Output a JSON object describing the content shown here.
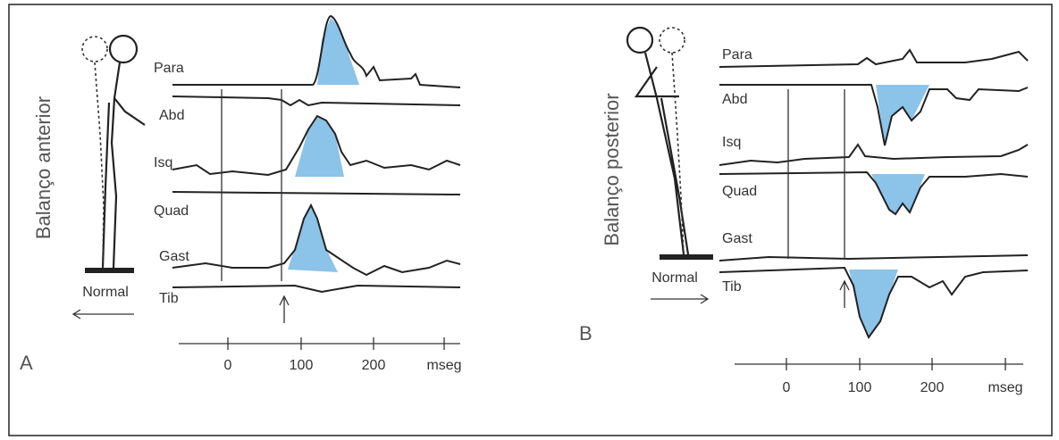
{
  "panel_a": {
    "label": "A",
    "side_label": "Balanço anterior",
    "figure_label": "Normal",
    "muscles": [
      "Para",
      "Abd",
      "Isq",
      "Quad",
      "Gast",
      "Tib"
    ],
    "axis_labels": [
      "0",
      "100",
      "200",
      "mseg"
    ]
  },
  "panel_b": {
    "label": "B",
    "side_label": "Balanço posterior",
    "figure_label": "Normal",
    "muscles": [
      "Para",
      "Abd",
      "Isq",
      "Quad",
      "Gast",
      "Tib"
    ],
    "axis_labels": [
      "0",
      "100",
      "200",
      "mseg"
    ]
  }
}
